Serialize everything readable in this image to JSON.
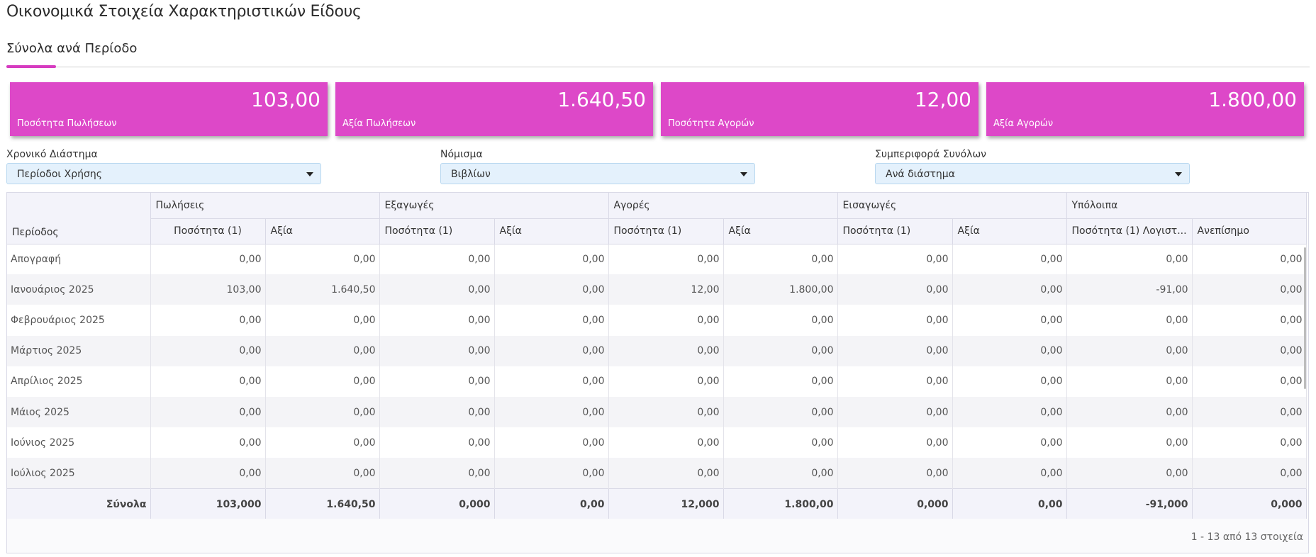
{
  "page_title": "Οικονομικά Στοιχεία Χαρακτηριστικών Είδους",
  "tab": {
    "label": "Σύνολα ανά Περίοδο"
  },
  "accent_color": "#dd48c8",
  "cards": [
    {
      "value": "103,00",
      "label": "Ποσότητα Πωλήσεων"
    },
    {
      "value": "1.640,50",
      "label": "Αξία Πωλήσεων"
    },
    {
      "value": "12,00",
      "label": "Ποσότητα Αγορών"
    },
    {
      "value": "1.800,00",
      "label": "Αξία Αγορών"
    }
  ],
  "filters": [
    {
      "label": "Χρονικό Διάστημα",
      "value": "Περίοδοι Χρήσης"
    },
    {
      "label": "Νόμισμα",
      "value": "Βιβλίων"
    },
    {
      "label": "Συμπεριφορά Συνόλων",
      "value": "Ανά διάστημα"
    }
  ],
  "table": {
    "period_header": "Περίοδος",
    "groups": [
      "Πωλήσεις",
      "Εξαγωγές",
      "Αγορές",
      "Εισαγωγές",
      "Υπόλοιπα"
    ],
    "subheaders": [
      "Ποσότητα (1)",
      "Αξία",
      "Ποσότητα (1)",
      "Αξία",
      "Ποσότητα (1)",
      "Αξία",
      "Ποσότητα (1)",
      "Αξία",
      "Ποσότητα (1) Λογιστ...",
      "Ανεπίσημο"
    ],
    "rows": [
      {
        "period": "Απογραφή",
        "cells": [
          "0,00",
          "0,00",
          "0,00",
          "0,00",
          "0,00",
          "0,00",
          "0,00",
          "0,00",
          "0,00",
          "0,00"
        ]
      },
      {
        "period": "Ιανουάριος 2025",
        "cells": [
          "103,00",
          "1.640,50",
          "0,00",
          "0,00",
          "12,00",
          "1.800,00",
          "0,00",
          "0,00",
          "-91,00",
          "0,00"
        ]
      },
      {
        "period": "Φεβρουάριος 2025",
        "cells": [
          "0,00",
          "0,00",
          "0,00",
          "0,00",
          "0,00",
          "0,00",
          "0,00",
          "0,00",
          "0,00",
          "0,00"
        ]
      },
      {
        "period": "Μάρτιος 2025",
        "cells": [
          "0,00",
          "0,00",
          "0,00",
          "0,00",
          "0,00",
          "0,00",
          "0,00",
          "0,00",
          "0,00",
          "0,00"
        ]
      },
      {
        "period": "Απρίλιος 2025",
        "cells": [
          "0,00",
          "0,00",
          "0,00",
          "0,00",
          "0,00",
          "0,00",
          "0,00",
          "0,00",
          "0,00",
          "0,00"
        ]
      },
      {
        "period": "Μάιος 2025",
        "cells": [
          "0,00",
          "0,00",
          "0,00",
          "0,00",
          "0,00",
          "0,00",
          "0,00",
          "0,00",
          "0,00",
          "0,00"
        ]
      },
      {
        "period": "Ιούνιος 2025",
        "cells": [
          "0,00",
          "0,00",
          "0,00",
          "0,00",
          "0,00",
          "0,00",
          "0,00",
          "0,00",
          "0,00",
          "0,00"
        ]
      },
      {
        "period": "Ιούλιος 2025",
        "cells": [
          "0,00",
          "0,00",
          "0,00",
          "0,00",
          "0,00",
          "0,00",
          "0,00",
          "0,00",
          "0,00",
          "0,00"
        ]
      }
    ],
    "totals": {
      "label": "Σύνολα",
      "cells": [
        "103,000",
        "1.640,50",
        "0,000",
        "0,00",
        "12,000",
        "1.800,00",
        "0,000",
        "0,00",
        "-91,000",
        "0,000"
      ]
    },
    "pager": "1 - 13 από 13 στοιχεία"
  }
}
